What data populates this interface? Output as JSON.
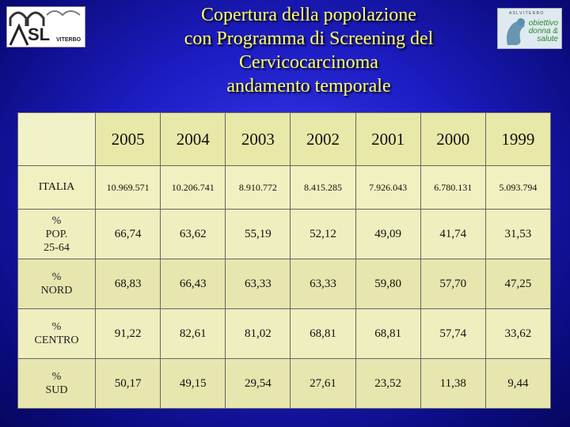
{
  "title": {
    "line1": "Copertura della popolazione",
    "line2": "con Programma di Screening del",
    "line3": "Cervicocarcinoma",
    "line4": "andamento temporale"
  },
  "logos": {
    "left": {
      "brand": "SL",
      "sub": "VITERBO"
    },
    "right": {
      "top": "A S L  V I T E R B O",
      "line1": "obiettivo",
      "line2": "donna &",
      "line3": "salute"
    }
  },
  "colors": {
    "background": "#1d1dc4",
    "title": "#ffff66",
    "table_bg": "#eeeebe"
  },
  "table": {
    "years": [
      "2005",
      "2004",
      "2003",
      "2002",
      "2001",
      "2000",
      "1999"
    ],
    "rows": [
      {
        "label": "ITALIA",
        "values": [
          "10.969.571",
          "10.206.741",
          "8.910.772",
          "8.415.285",
          "7.926.043",
          "6.780.131",
          "5.093.794"
        ]
      },
      {
        "label_line1": "%",
        "label_line2": "POP.",
        "label_line3": "25-64",
        "values": [
          "66,74",
          "63,62",
          "55,19",
          "52,12",
          "49,09",
          "41,74",
          "31,53"
        ]
      },
      {
        "label_line1": "%",
        "label_line2": "NORD",
        "values": [
          "68,83",
          "66,43",
          "63,33",
          "63,33",
          "59,80",
          "57,70",
          "47,25"
        ]
      },
      {
        "label_line1": "%",
        "label_line2": "CENTRO",
        "values": [
          "91,22",
          "82,61",
          "81,02",
          "68,81",
          "68,81",
          "57,74",
          "33,62"
        ]
      },
      {
        "label_line1": "%",
        "label_line2": "SUD",
        "values": [
          "50,17",
          "49,15",
          "29,54",
          "27,61",
          "23,52",
          "11,38",
          "9,44"
        ]
      }
    ]
  }
}
